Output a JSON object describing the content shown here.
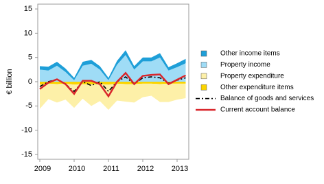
{
  "chart_data": {
    "type": "stacked_area_line",
    "y_label": "€ billion",
    "categories": [
      "2009",
      null,
      null,
      null,
      "2010",
      null,
      null,
      null,
      "2011",
      null,
      null,
      null,
      "2012",
      null,
      null,
      null,
      "2013",
      null
    ],
    "ylim": [
      -16,
      16
    ],
    "yticks": [
      -15,
      -10,
      -5,
      0,
      5,
      10,
      15
    ],
    "grid": false,
    "series": [
      {
        "name": "Other income items",
        "kind": "area",
        "stack": "positive",
        "color": "#1e9fd8",
        "values": [
          0.7,
          0.8,
          0.8,
          0.7,
          0.5,
          0.8,
          0.8,
          0.7,
          0.5,
          0.8,
          1,
          0.7,
          0.8,
          0.8,
          0.9,
          0.7,
          0.8,
          0.9
        ]
      },
      {
        "name": "Property income",
        "kind": "area",
        "stack": "positive",
        "color": "#9fdcf6",
        "values": [
          2.5,
          2.3,
          3.3,
          2,
          0.3,
          3.3,
          3.7,
          2.5,
          0.3,
          3.5,
          5.5,
          2.5,
          4.2,
          4.2,
          5,
          2.3,
          3,
          3.8
        ]
      },
      {
        "name": "Property expenditure",
        "kind": "area",
        "stack": "negative",
        "color": "#fdf0a8",
        "values": [
          -5,
          -3.2,
          -3.8,
          -3.3,
          -4.8,
          -3,
          -4.5,
          -3.5,
          -5.2,
          -3.5,
          -3.6,
          -3.8,
          -2.8,
          -2.5,
          -3.7,
          -3.8,
          -3.3,
          -3
        ]
      },
      {
        "name": "Other expenditure items",
        "kind": "area",
        "stack": "negative",
        "color": "#fbd400",
        "values": [
          -0.6,
          -0.4,
          -0.5,
          -0.4,
          -0.6,
          -0.5,
          -0.5,
          -0.5,
          -0.6,
          -0.4,
          -0.5,
          -0.5,
          -0.4,
          -0.4,
          -0.5,
          -0.4,
          -0.4,
          -0.4
        ]
      },
      {
        "name": "Balance of goods and services",
        "kind": "line",
        "dash": "6,3,2,3",
        "color": "#000000",
        "values": [
          -1,
          0,
          0.5,
          -0.5,
          -2,
          0,
          -0.8,
          0,
          -2,
          0,
          1,
          -0.5,
          0.8,
          1,
          0.8,
          -0.3,
          0.3,
          0.8
        ]
      },
      {
        "name": "Current account balance",
        "kind": "line",
        "color": "#d9262b",
        "values": [
          -1.5,
          -0.2,
          0.5,
          -0.5,
          -2.5,
          0.2,
          0.2,
          -0.5,
          -3,
          0,
          1.8,
          -0.5,
          1.2,
          1.4,
          1.5,
          -0.5,
          0.4,
          1.3
        ]
      }
    ]
  }
}
